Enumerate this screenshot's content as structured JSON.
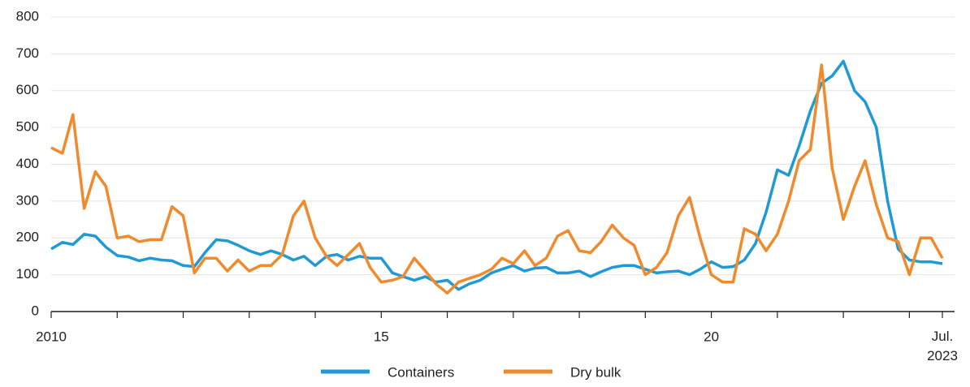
{
  "chart_data": {
    "type": "line",
    "x": [
      2010,
      2010.17,
      2010.33,
      2010.5,
      2010.67,
      2010.83,
      2011,
      2011.17,
      2011.33,
      2011.5,
      2011.67,
      2011.83,
      2012,
      2012.17,
      2012.33,
      2012.5,
      2012.67,
      2012.83,
      2013,
      2013.17,
      2013.33,
      2013.5,
      2013.67,
      2013.83,
      2014,
      2014.17,
      2014.33,
      2014.5,
      2014.67,
      2014.83,
      2015,
      2015.17,
      2015.33,
      2015.5,
      2015.67,
      2015.83,
      2016,
      2016.17,
      2016.33,
      2016.5,
      2016.67,
      2016.83,
      2017,
      2017.17,
      2017.33,
      2017.5,
      2017.67,
      2017.83,
      2018,
      2018.17,
      2018.33,
      2018.5,
      2018.67,
      2018.83,
      2019,
      2019.17,
      2019.33,
      2019.5,
      2019.67,
      2019.83,
      2020,
      2020.17,
      2020.33,
      2020.5,
      2020.67,
      2020.83,
      2021,
      2021.17,
      2021.33,
      2021.5,
      2021.67,
      2021.83,
      2022,
      2022.17,
      2022.33,
      2022.5,
      2022.67,
      2022.83,
      2023,
      2023.17,
      2023.33,
      2023.5
    ],
    "series": [
      {
        "name": "Containers",
        "color": "#1f9ad6",
        "values": [
          170,
          188,
          182,
          210,
          205,
          175,
          152,
          148,
          138,
          145,
          140,
          138,
          125,
          122,
          160,
          195,
          192,
          180,
          165,
          155,
          165,
          155,
          140,
          150,
          125,
          150,
          155,
          140,
          150,
          145,
          145,
          105,
          95,
          85,
          95,
          80,
          85,
          60,
          75,
          85,
          105,
          115,
          125,
          110,
          118,
          120,
          105,
          105,
          110,
          95,
          108,
          120,
          125,
          125,
          115,
          105,
          108,
          110,
          100,
          115,
          135,
          120,
          122,
          140,
          185,
          270,
          385,
          370,
          450,
          545,
          620,
          640,
          680,
          600,
          570,
          500,
          300,
          170,
          140,
          135,
          135,
          130
        ]
      },
      {
        "name": "Dry bulk",
        "color": "#f08a2c",
        "values": [
          445,
          430,
          535,
          280,
          380,
          340,
          200,
          205,
          190,
          195,
          195,
          285,
          260,
          105,
          145,
          145,
          110,
          140,
          110,
          125,
          125,
          155,
          260,
          300,
          200,
          150,
          125,
          155,
          185,
          120,
          80,
          85,
          95,
          145,
          110,
          75,
          50,
          80,
          90,
          100,
          115,
          145,
          130,
          165,
          125,
          145,
          205,
          220,
          165,
          160,
          190,
          235,
          200,
          180,
          100,
          120,
          160,
          260,
          310,
          200,
          100,
          80,
          80,
          225,
          210,
          165,
          210,
          300,
          410,
          440,
          670,
          390,
          250,
          340,
          410,
          290,
          200,
          190,
          100,
          200,
          200,
          145
        ]
      }
    ],
    "xlim": [
      2010,
      2023.5
    ],
    "xticks": [
      {
        "value": 2010,
        "label": "2010"
      },
      {
        "value": 2015,
        "label": "15"
      },
      {
        "value": 2020,
        "label": "20"
      },
      {
        "value": 2023.5,
        "label": "Jul.\n2023"
      }
    ],
    "xminor_ticks": [
      2011,
      2012,
      2013,
      2014,
      2016,
      2017,
      2018,
      2019,
      2021,
      2022,
      2023
    ],
    "ylim": [
      0,
      800
    ],
    "yticks": [
      0,
      100,
      200,
      300,
      400,
      500,
      600,
      700,
      800
    ],
    "grid": true,
    "legend": "bottom"
  }
}
